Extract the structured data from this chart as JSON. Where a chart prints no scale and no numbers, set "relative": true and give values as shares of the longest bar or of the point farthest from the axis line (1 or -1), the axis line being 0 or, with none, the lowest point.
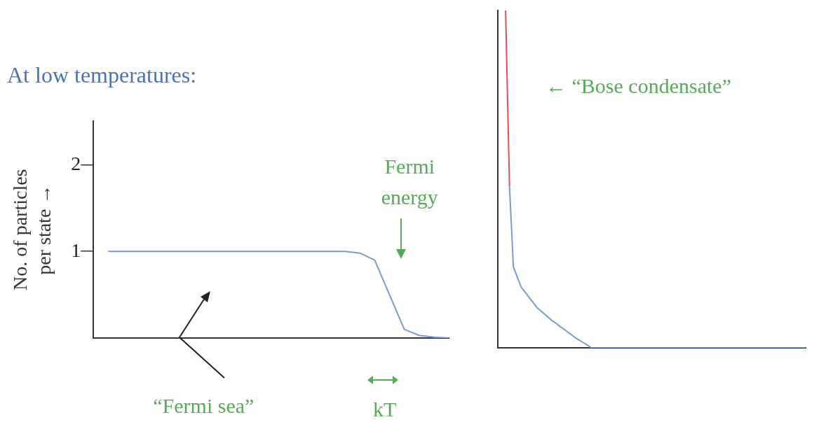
{
  "chart_data": [
    {
      "type": "line",
      "title": "At low temperatures:",
      "ylabel": "No. of particles\nper state →",
      "categories": [
        null,
        null,
        null,
        null,
        null,
        null,
        null,
        null,
        null,
        null,
        null,
        null,
        null,
        null,
        null,
        null,
        null,
        null,
        null,
        null,
        null,
        null,
        null,
        null,
        null
      ],
      "series": [
        {
          "color": "#7a9ad0",
          "values": [
            null,
            1,
            1,
            1,
            1,
            1,
            1,
            1,
            1,
            1,
            1,
            1,
            1,
            1,
            1,
            1,
            1,
            1,
            0.98,
            0.9,
            0.5,
            0.1,
            0.03,
            0.01,
            0
          ]
        }
      ],
      "ylim": [
        0,
        2.5
      ],
      "yticks": [
        1,
        2
      ],
      "tick_labels": "y",
      "grid": false,
      "legend": false,
      "marker": "none",
      "annotations": [
        "Fermi energy",
        "“Fermi sea”",
        "kT"
      ]
    },
    {
      "type": "line",
      "relative": true,
      "categories": [
        null,
        null,
        null,
        null,
        null,
        null,
        null,
        null,
        null,
        null,
        null,
        null,
        null,
        null,
        null,
        null,
        null,
        null,
        null,
        null,
        null,
        null,
        null,
        null,
        null,
        null,
        null,
        null,
        null,
        null,
        null,
        null,
        null,
        null,
        null,
        null,
        null,
        null,
        null,
        null,
        null,
        null,
        null,
        null,
        null,
        null,
        null,
        null,
        null,
        null,
        null,
        null,
        null,
        null,
        null,
        null,
        null,
        null,
        null,
        null,
        null,
        null,
        null,
        null,
        null,
        null,
        null,
        null,
        null,
        null,
        null,
        null,
        null,
        null,
        null,
        null,
        null,
        null,
        null,
        null
      ],
      "series": [
        {
          "color": "#e05050",
          "values": [
            null,
            null,
            1,
            0.48,
            null,
            null,
            null,
            null,
            null,
            null,
            null,
            null,
            null,
            null,
            null,
            null,
            null,
            null,
            null,
            null,
            null,
            null,
            null,
            null,
            null,
            null,
            null,
            null,
            null,
            null,
            null,
            null,
            null,
            null,
            null,
            null,
            null,
            null,
            null,
            null,
            null,
            null,
            null,
            null,
            null,
            null,
            null,
            null,
            null,
            null,
            null,
            null,
            null,
            null,
            null,
            null,
            null,
            null,
            null,
            null,
            null,
            null,
            null,
            null,
            null,
            null,
            null,
            null,
            null,
            null,
            null,
            null,
            null,
            null,
            null,
            null,
            null,
            null,
            null,
            null
          ]
        },
        {
          "color": "#7a9ad0",
          "values": [
            null,
            null,
            null,
            0.48,
            0.24,
            0.21,
            0.18,
            0.165,
            0.15,
            0.135,
            0.12,
            0.11,
            0.1,
            0.09,
            0.08,
            0.072,
            0.063,
            0.055,
            0.046,
            0.038,
            0.029,
            0.022,
            0.015,
            0.008,
            0,
            0,
            0,
            0,
            0,
            0,
            0,
            0,
            0,
            0,
            0,
            0,
            0,
            0,
            0,
            0,
            0,
            0,
            0,
            0,
            0,
            0,
            0,
            0,
            0,
            0,
            0,
            0,
            0,
            0,
            0,
            0,
            0,
            0,
            0,
            0,
            0,
            0,
            0,
            0,
            0,
            0,
            0,
            0,
            0,
            0,
            0,
            0,
            0,
            0,
            0,
            0,
            0,
            0,
            0,
            0
          ]
        }
      ],
      "tick_labels": false,
      "grid": false,
      "legend": false,
      "marker": "none",
      "annotations": [
        "← “Bose condensate”"
      ]
    }
  ]
}
